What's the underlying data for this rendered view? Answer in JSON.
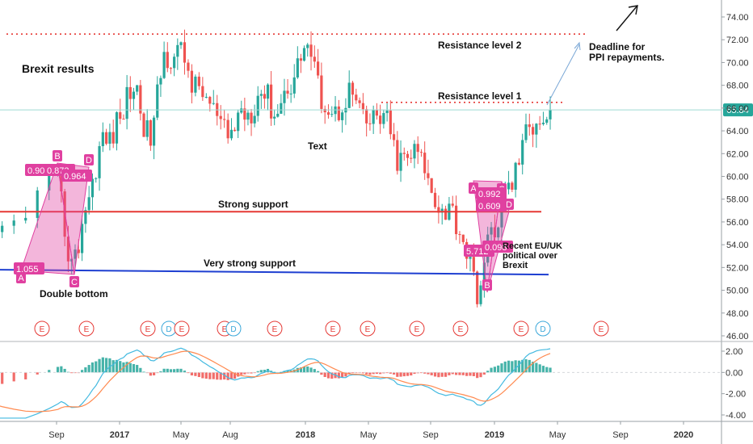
{
  "chart_data": [
    {
      "type": "candlestick",
      "y_axis_ticks": [
        "74.00",
        "72.00",
        "70.00",
        "68.00",
        "66.00",
        "64.00",
        "62.00",
        "60.00",
        "58.00",
        "56.00",
        "54.00",
        "52.00",
        "50.00",
        "48.00",
        "46.00"
      ],
      "ylim": [
        45.5,
        75.5
      ],
      "last_price": "65.84",
      "x_axis_ticks": [
        "Sep",
        "2017",
        "May",
        "Aug",
        "2018",
        "May",
        "Sep",
        "2019",
        "May",
        "Sep",
        "2020"
      ],
      "colors": {
        "up": "#26a69a",
        "down": "#ef5350"
      },
      "approx_closes_by_month": [
        {
          "t": "2016-06",
          "close": 70.5
        },
        {
          "t": "2016-07",
          "close": 54.0
        },
        {
          "t": "2016-08",
          "close": 55.5
        },
        {
          "t": "2016-09",
          "close": 58.5
        },
        {
          "t": "2016-10",
          "close": 53.0
        },
        {
          "t": "2016-11",
          "close": 57.5
        },
        {
          "t": "2016-12",
          "close": 63.5
        },
        {
          "t": "2017-01",
          "close": 65.0
        },
        {
          "t": "2017-02",
          "close": 67.5
        },
        {
          "t": "2017-03",
          "close": 64.0
        },
        {
          "t": "2017-04",
          "close": 70.0
        },
        {
          "t": "2017-05",
          "close": 71.5
        },
        {
          "t": "2017-06",
          "close": 67.0
        },
        {
          "t": "2017-07",
          "close": 66.0
        },
        {
          "t": "2017-08",
          "close": 63.5
        },
        {
          "t": "2017-09",
          "close": 65.5
        },
        {
          "t": "2017-10",
          "close": 68.0
        },
        {
          "t": "2017-11",
          "close": 65.0
        },
        {
          "t": "2017-12",
          "close": 69.0
        },
        {
          "t": "2018-01",
          "close": 71.0
        },
        {
          "t": "2018-02",
          "close": 67.5
        },
        {
          "t": "2018-03",
          "close": 65.5
        },
        {
          "t": "2018-04",
          "close": 67.0
        },
        {
          "t": "2018-05",
          "close": 65.0
        },
        {
          "t": "2018-06",
          "close": 64.5
        },
        {
          "t": "2018-07",
          "close": 62.0
        },
        {
          "t": "2018-08",
          "close": 61.5
        },
        {
          "t": "2018-09",
          "close": 59.5
        },
        {
          "t": "2018-10",
          "close": 57.0
        },
        {
          "t": "2018-11",
          "close": 54.5
        },
        {
          "t": "2018-12",
          "close": 50.5
        },
        {
          "t": "2019-01",
          "close": 55.0
        },
        {
          "t": "2019-02",
          "close": 60.0
        },
        {
          "t": "2019-03",
          "close": 63.0
        },
        {
          "t": "2019-04",
          "close": 65.84
        }
      ],
      "horizontal_lines": [
        {
          "label": "Resistance level 2",
          "value": 72.5,
          "style": "dotted",
          "color": "#e53935"
        },
        {
          "label": "Resistance level 1",
          "value": 66.5,
          "style": "dotted",
          "color": "#e53935"
        },
        {
          "label": "Strong support",
          "value": 56.9,
          "style": "solid",
          "color": "#e53935"
        },
        {
          "label": "Very strong support",
          "value": 51.8,
          "style": "solid",
          "color": "#1e3fd1"
        }
      ],
      "annotations": [
        {
          "text": "Brexit results"
        },
        {
          "text": "Double bottom"
        },
        {
          "text": "Text"
        },
        {
          "text": "Deadline for\nPPI repayments."
        },
        {
          "text": "Recent EU/UK\npolitical over\nBrexit"
        }
      ],
      "patterns": [
        {
          "points": [
            "A",
            "B",
            "C",
            "D"
          ],
          "ratios": [
            "0.90",
            "0.873",
            "0.964",
            "1.055"
          ]
        },
        {
          "points": [
            "A",
            "B",
            "C",
            "D"
          ],
          "ratios": [
            "0.992",
            "0.609",
            "5.712",
            "0.098"
          ]
        }
      ],
      "event_markers": [
        "E",
        "E",
        "E",
        "D",
        "E",
        "E",
        "D",
        "E",
        "E",
        "E",
        "E",
        "E",
        "E",
        "E",
        "D",
        "E"
      ]
    },
    {
      "type": "macd",
      "y_axis_ticks": [
        "2.00",
        "0.00",
        "-2.00",
        "-4.00"
      ],
      "ylim": [
        -4.6,
        2.6
      ],
      "colors": {
        "macd": "#42b9e0",
        "signal": "#ff8a50",
        "hist_up": "#26a69a",
        "hist_down": "#ef5350"
      }
    }
  ]
}
